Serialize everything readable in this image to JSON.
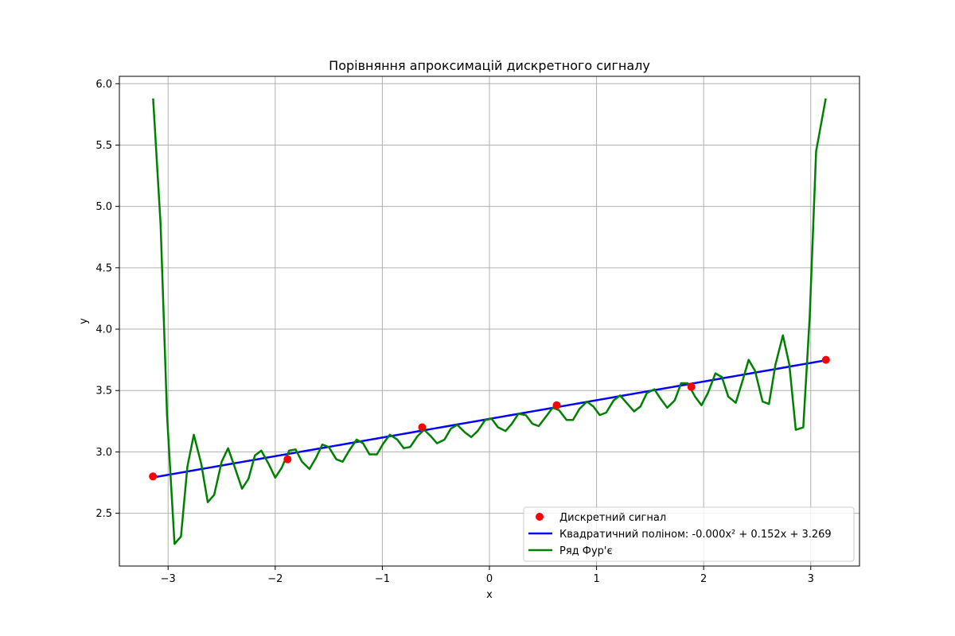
{
  "chart_data": {
    "type": "line",
    "title": "Порівняння апроксимацій дискретного сигналу",
    "xlabel": "x",
    "ylabel": "y",
    "xlim": [
      -3.455,
      3.455
    ],
    "ylim": [
      2.07,
      6.06
    ],
    "xticks": [
      -3,
      -2,
      -1,
      0,
      1,
      2,
      3
    ],
    "xtick_labels": [
      "−3",
      "−2",
      "−1",
      "0",
      "1",
      "2",
      "3"
    ],
    "yticks": [
      2.5,
      3.0,
      3.5,
      4.0,
      4.5,
      5.0,
      5.5,
      6.0
    ],
    "ytick_labels": [
      "2.5",
      "3.0",
      "3.5",
      "4.0",
      "4.5",
      "5.0",
      "5.5",
      "6.0"
    ],
    "grid": true,
    "legend_position": "bottom-right",
    "series": [
      {
        "name": "Дискретний сигнал",
        "kind": "scatter",
        "color": "#ff0000",
        "points": [
          [
            -3.1416,
            2.8
          ],
          [
            -1.885,
            2.94
          ],
          [
            -0.628,
            3.2
          ],
          [
            0.628,
            3.38
          ],
          [
            1.885,
            3.53
          ],
          [
            3.1416,
            3.75
          ]
        ]
      },
      {
        "name": "Квадратичний поліном: -0.000x² + 0.152x + 3.269",
        "kind": "line",
        "color": "#0000ff",
        "fn": {
          "a": 0.0,
          "b": 0.152,
          "c": 3.269
        },
        "x_range": [
          -3.1416,
          3.1416
        ]
      },
      {
        "name": "Ряд Фур'є",
        "kind": "line",
        "color": "#008000",
        "points": [
          [
            -3.14,
            5.88
          ],
          [
            -3.07,
            4.85
          ],
          [
            -3.01,
            3.3
          ],
          [
            -2.94,
            2.25
          ],
          [
            -2.88,
            2.31
          ],
          [
            -2.82,
            2.88
          ],
          [
            -2.76,
            3.14
          ],
          [
            -2.69,
            2.9
          ],
          [
            -2.63,
            2.59
          ],
          [
            -2.57,
            2.65
          ],
          [
            -2.5,
            2.92
          ],
          [
            -2.44,
            3.03
          ],
          [
            -2.38,
            2.88
          ],
          [
            -2.31,
            2.7
          ],
          [
            -2.25,
            2.78
          ],
          [
            -2.19,
            2.97
          ],
          [
            -2.13,
            3.01
          ],
          [
            -2.06,
            2.9
          ],
          [
            -2.0,
            2.79
          ],
          [
            -1.94,
            2.87
          ],
          [
            -1.87,
            3.01
          ],
          [
            -1.81,
            3.02
          ],
          [
            -1.75,
            2.92
          ],
          [
            -1.68,
            2.86
          ],
          [
            -1.62,
            2.95
          ],
          [
            -1.56,
            3.06
          ],
          [
            -1.5,
            3.04
          ],
          [
            -1.43,
            2.94
          ],
          [
            -1.37,
            2.92
          ],
          [
            -1.31,
            3.01
          ],
          [
            -1.24,
            3.1
          ],
          [
            -1.18,
            3.07
          ],
          [
            -1.12,
            2.98
          ],
          [
            -1.05,
            2.98
          ],
          [
            -0.99,
            3.07
          ],
          [
            -0.93,
            3.14
          ],
          [
            -0.86,
            3.1
          ],
          [
            -0.8,
            3.03
          ],
          [
            -0.74,
            3.04
          ],
          [
            -0.67,
            3.13
          ],
          [
            -0.61,
            3.18
          ],
          [
            -0.55,
            3.13
          ],
          [
            -0.49,
            3.07
          ],
          [
            -0.42,
            3.1
          ],
          [
            -0.36,
            3.19
          ],
          [
            -0.3,
            3.22
          ],
          [
            -0.23,
            3.16
          ],
          [
            -0.17,
            3.12
          ],
          [
            -0.11,
            3.17
          ],
          [
            -0.04,
            3.26
          ],
          [
            0.02,
            3.27
          ],
          [
            0.08,
            3.2
          ],
          [
            0.15,
            3.17
          ],
          [
            0.21,
            3.23
          ],
          [
            0.27,
            3.31
          ],
          [
            0.34,
            3.3
          ],
          [
            0.4,
            3.23
          ],
          [
            0.46,
            3.21
          ],
          [
            0.53,
            3.29
          ],
          [
            0.59,
            3.36
          ],
          [
            0.65,
            3.34
          ],
          [
            0.72,
            3.26
          ],
          [
            0.78,
            3.26
          ],
          [
            0.84,
            3.35
          ],
          [
            0.91,
            3.41
          ],
          [
            0.97,
            3.37
          ],
          [
            1.03,
            3.3
          ],
          [
            1.09,
            3.32
          ],
          [
            1.16,
            3.42
          ],
          [
            1.22,
            3.46
          ],
          [
            1.28,
            3.4
          ],
          [
            1.35,
            3.33
          ],
          [
            1.41,
            3.37
          ],
          [
            1.47,
            3.48
          ],
          [
            1.54,
            3.51
          ],
          [
            1.6,
            3.43
          ],
          [
            1.66,
            3.36
          ],
          [
            1.73,
            3.42
          ],
          [
            1.79,
            3.56
          ],
          [
            1.85,
            3.56
          ],
          [
            1.92,
            3.45
          ],
          [
            1.98,
            3.38
          ],
          [
            2.04,
            3.48
          ],
          [
            2.11,
            3.64
          ],
          [
            2.17,
            3.61
          ],
          [
            2.23,
            3.45
          ],
          [
            2.3,
            3.4
          ],
          [
            2.36,
            3.57
          ],
          [
            2.42,
            3.75
          ],
          [
            2.48,
            3.66
          ],
          [
            2.55,
            3.41
          ],
          [
            2.61,
            3.39
          ],
          [
            2.67,
            3.71
          ],
          [
            2.74,
            3.95
          ],
          [
            2.8,
            3.71
          ],
          [
            2.86,
            3.18
          ],
          [
            2.93,
            3.2
          ],
          [
            2.99,
            4.1
          ],
          [
            3.05,
            5.45
          ],
          [
            3.14,
            5.88
          ]
        ]
      }
    ]
  }
}
